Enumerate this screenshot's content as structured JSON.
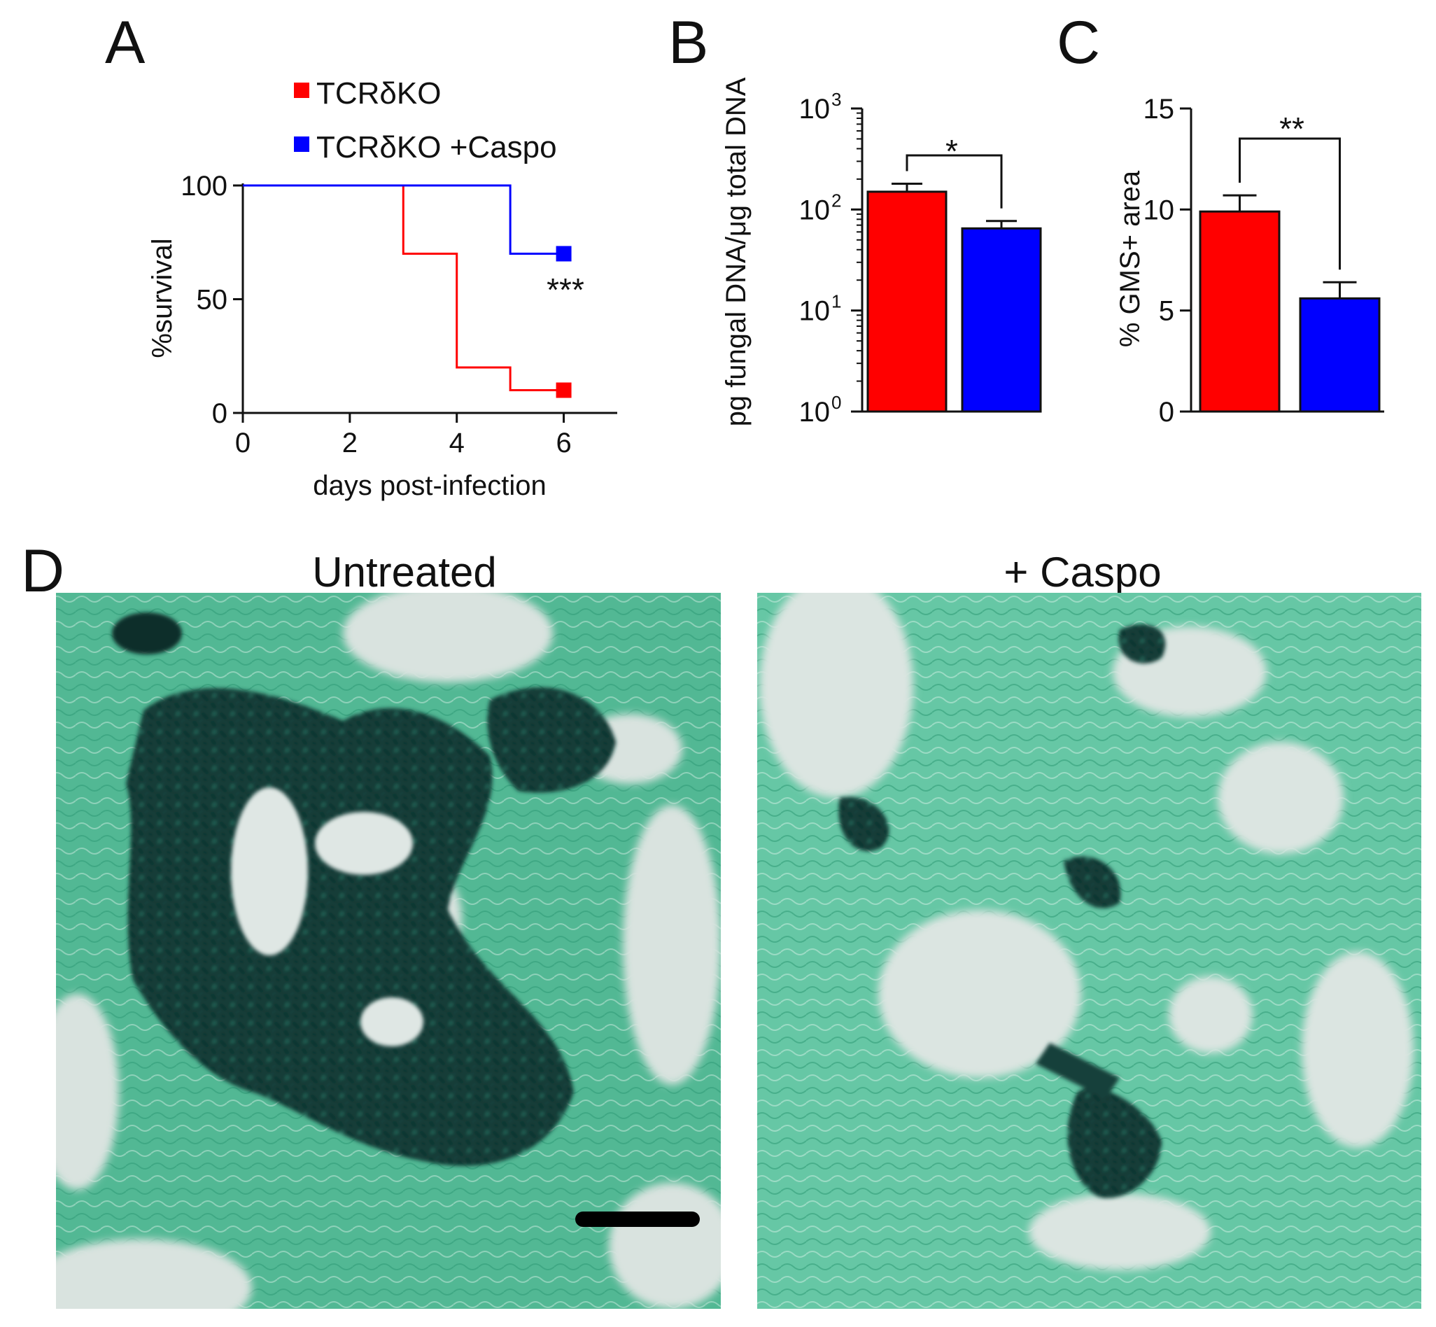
{
  "panels": {
    "A": "A",
    "B": "B",
    "C": "C",
    "D": "D"
  },
  "colors": {
    "red": "#ff0000",
    "blue": "#0000ff",
    "tissue": "#52b894",
    "fungus": "#0f3a35",
    "background_tissue": "#dbe7e2"
  },
  "chart_data": [
    {
      "panel": "A",
      "type": "line",
      "step": true,
      "xlabel": "days post-infection",
      "ylabel": "%survival",
      "xlim": [
        0,
        7
      ],
      "ylim": [
        0,
        100
      ],
      "xticks": [
        0,
        2,
        4,
        6
      ],
      "yticks": [
        0,
        50,
        100
      ],
      "series": [
        {
          "name": "TCRδKO",
          "color": "#ff0000",
          "x": [
            0,
            3,
            4,
            5,
            6
          ],
          "y": [
            100,
            70,
            20,
            10,
            10
          ]
        },
        {
          "name": "TCRδKO +Caspo",
          "color": "#0000ff",
          "x": [
            0,
            5,
            6
          ],
          "y": [
            100,
            70,
            70
          ]
        }
      ],
      "annotations": [
        "***"
      ],
      "legend": "top"
    },
    {
      "panel": "B",
      "type": "bar",
      "log_scale": true,
      "ylabel": "pg fungal DNA/μg total DNA",
      "ylim": [
        1,
        1000
      ],
      "yticks": [
        "10",
        "10",
        "10",
        "10"
      ],
      "ytick_exponents": [
        "0",
        "1",
        "2",
        "3"
      ],
      "ytick_values": [
        1,
        10,
        100,
        1000
      ],
      "categories": [
        "TCRδKO",
        "TCRδKO +Caspo"
      ],
      "values": [
        150,
        65
      ],
      "errors": [
        30,
        12
      ],
      "colors": [
        "#ff0000",
        "#0000ff"
      ],
      "annotations": [
        "*"
      ]
    },
    {
      "panel": "C",
      "type": "bar",
      "ylabel": "% GMS+ area",
      "ylim": [
        0,
        15
      ],
      "yticks": [
        0,
        5,
        10,
        15
      ],
      "categories": [
        "TCRδKO",
        "TCRδKO +Caspo"
      ],
      "values": [
        9.9,
        5.6
      ],
      "errors": [
        0.8,
        0.8
      ],
      "colors": [
        "#ff0000",
        "#0000ff"
      ],
      "annotations": [
        "**"
      ]
    }
  ],
  "micrographs": [
    {
      "title": "Untreated"
    },
    {
      "title": "+ Caspo"
    }
  ]
}
